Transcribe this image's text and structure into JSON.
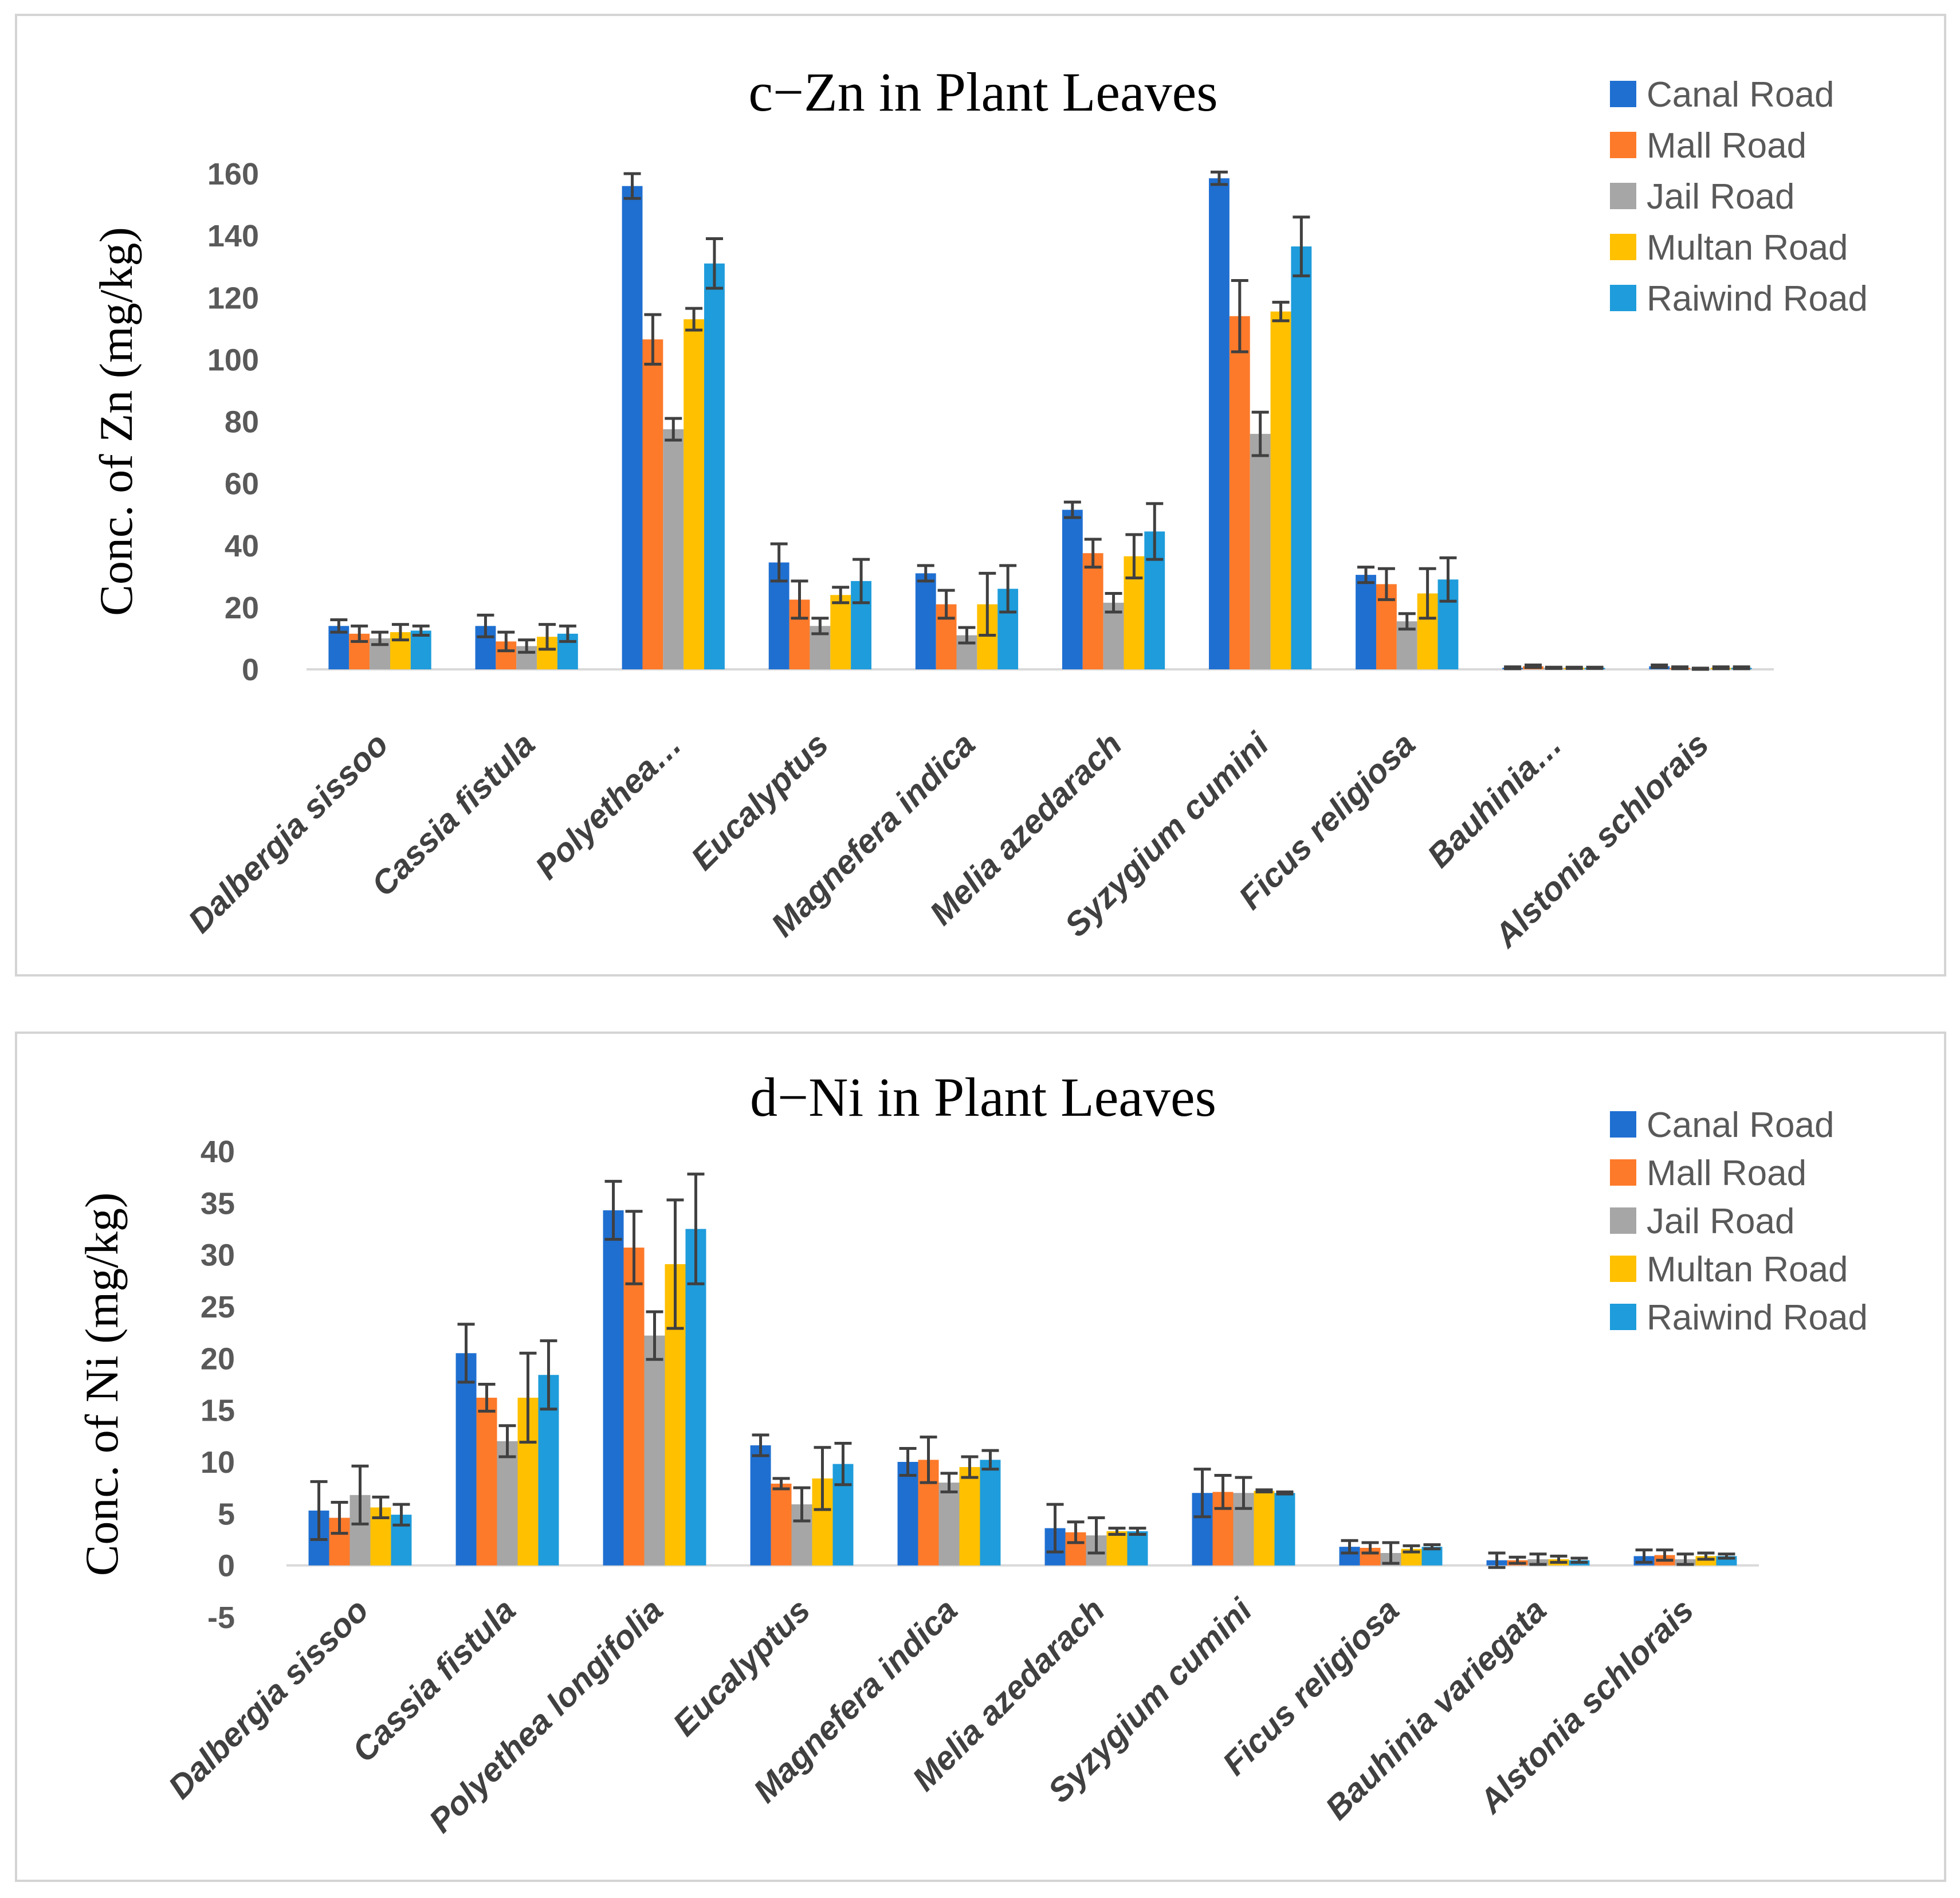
{
  "colors": {
    "Canal Road": "#1f6fd1",
    "Mall Road": "#fd7a2a",
    "Jail Road": "#a6a6a6",
    "Multan Road": "#ffc000",
    "Raiwind Road": "#1e9cdb",
    "axis": "#d9d9d9",
    "error": "#404040"
  },
  "chart_data": [
    {
      "type": "bar",
      "title": "c−Zn in Plant Leaves",
      "xlabel": "",
      "ylabel": "Conc. of Zn (mg/kg)",
      "ylim": [
        0,
        160
      ],
      "yticks": [
        0,
        20,
        40,
        60,
        80,
        100,
        120,
        140,
        160
      ],
      "legend_position": "top-right",
      "categories": [
        "Dalbergia sissoo",
        "Cassia fistula",
        "Polyethea…",
        "Eucalyptus",
        "Magnefera indica",
        "Melia azedarach",
        "Syzygium cumini",
        "Ficus religiosa",
        "Bauhinia…",
        "Alstonia schlorais"
      ],
      "series": [
        {
          "name": "Canal Road",
          "values": [
            14,
            14,
            156,
            34.5,
            31,
            51.5,
            158.5,
            30.5,
            0.5,
            1
          ],
          "errors": [
            2,
            3.5,
            4,
            6,
            2.5,
            2.5,
            2,
            2.5,
            0.3,
            0.4
          ]
        },
        {
          "name": "Mall Road",
          "values": [
            11.5,
            9,
            106.5,
            22.5,
            21,
            37.5,
            114,
            27.5,
            1,
            0.5
          ],
          "errors": [
            2.5,
            3,
            8,
            6,
            4.5,
            4.5,
            11.5,
            5,
            0.4,
            0.3
          ]
        },
        {
          "name": "Jail Road",
          "values": [
            10,
            7.5,
            77.5,
            14,
            11,
            21.5,
            76,
            15.5,
            0.5,
            0.2
          ],
          "errors": [
            2,
            2,
            3.5,
            2.5,
            2.5,
            3,
            7,
            2.5,
            0.2,
            0.2
          ]
        },
        {
          "name": "Multan Road",
          "values": [
            12,
            10.5,
            113,
            24,
            21,
            36.5,
            115.5,
            24.5,
            0.5,
            0.5
          ],
          "errors": [
            2.5,
            4,
            3.5,
            2.5,
            10,
            7,
            3,
            8,
            0.2,
            0.3
          ]
        },
        {
          "name": "Raiwind Road",
          "values": [
            12.5,
            11.5,
            131,
            28.5,
            26,
            44.5,
            136.5,
            29,
            0.5,
            0.5
          ],
          "errors": [
            1.5,
            2.5,
            8,
            7,
            7.5,
            9,
            9.5,
            7,
            0.2,
            0.3
          ]
        }
      ]
    },
    {
      "type": "bar",
      "title": "d−Ni in Plant Leaves",
      "xlabel": "",
      "ylabel": "Conc. of Ni (mg/kg)",
      "ylim": [
        -5,
        40
      ],
      "yticks": [
        -5,
        0,
        5,
        10,
        15,
        20,
        25,
        30,
        35,
        40
      ],
      "legend_position": "top-right",
      "categories": [
        "Dalbergia sissoo",
        "Cassia fistula",
        "Polyethea longifolia",
        "Eucalyptus",
        "Magnefera indica",
        "Melia azedarach",
        "Syzygium cumini",
        "Ficus religiosa",
        "Bauhinia variegata",
        "Alstonia schlorais"
      ],
      "series": [
        {
          "name": "Canal Road",
          "values": [
            5.3,
            20.5,
            34.3,
            11.6,
            10,
            3.6,
            7,
            1.8,
            0.5,
            0.9
          ],
          "errors": [
            2.8,
            2.8,
            2.8,
            1,
            1.3,
            2.3,
            2.3,
            0.6,
            0.7,
            0.6
          ]
        },
        {
          "name": "Mall Road",
          "values": [
            4.6,
            16.2,
            30.7,
            7.9,
            10.2,
            3.2,
            7.1,
            1.7,
            0.5,
            1
          ],
          "errors": [
            1.5,
            1.3,
            3.5,
            0.5,
            2.2,
            1,
            1.6,
            0.5,
            0.3,
            0.5
          ]
        },
        {
          "name": "Jail Road",
          "values": [
            6.8,
            12,
            22.2,
            5.9,
            8,
            2.9,
            7,
            1.2,
            0.6,
            0.6
          ],
          "errors": [
            2.8,
            1.5,
            2.3,
            1.6,
            0.9,
            1.7,
            1.5,
            1,
            0.5,
            0.5
          ]
        },
        {
          "name": "Multan Road",
          "values": [
            5.6,
            16.2,
            29.1,
            8.4,
            9.5,
            3.3,
            7.2,
            1.6,
            0.6,
            0.9
          ],
          "errors": [
            1,
            4.3,
            6.2,
            3,
            1,
            0.3,
            0.1,
            0.3,
            0.3,
            0.3
          ]
        },
        {
          "name": "Raiwind Road",
          "values": [
            4.9,
            18.4,
            32.5,
            9.8,
            10.2,
            3.3,
            7,
            1.8,
            0.5,
            0.9
          ],
          "errors": [
            1,
            3.3,
            5.3,
            2,
            0.9,
            0.3,
            0.1,
            0.2,
            0.2,
            0.2
          ]
        }
      ]
    }
  ]
}
